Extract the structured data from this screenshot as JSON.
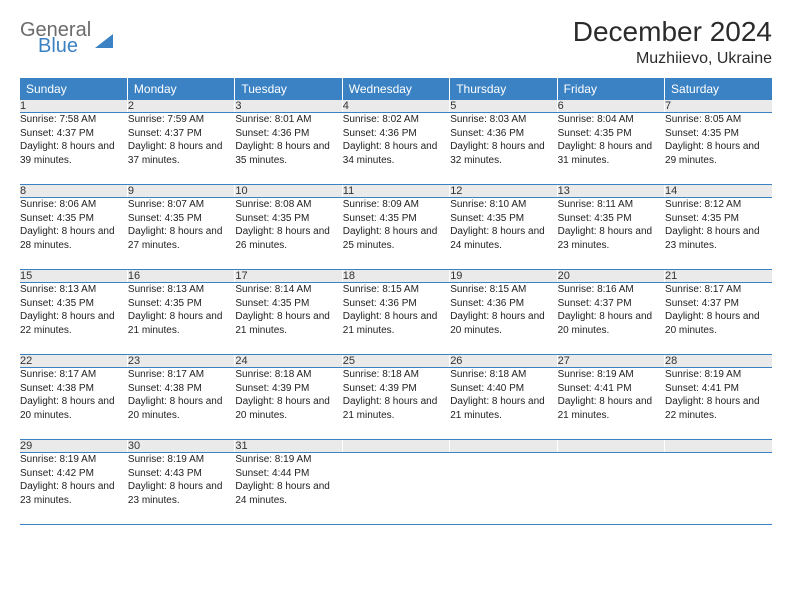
{
  "logo": {
    "top": "General",
    "bottom": "Blue"
  },
  "title": "December 2024",
  "location": "Muzhiievo, Ukraine",
  "header_bg": "#3b82c4",
  "header_fg": "#ffffff",
  "daynum_bg": "#eaeaea",
  "rule_color": "#3b82c4",
  "columns": [
    "Sunday",
    "Monday",
    "Tuesday",
    "Wednesday",
    "Thursday",
    "Friday",
    "Saturday"
  ],
  "weeks": [
    {
      "nums": [
        "1",
        "2",
        "3",
        "4",
        "5",
        "6",
        "7"
      ],
      "cells": [
        {
          "sunrise": "7:58 AM",
          "sunset": "4:37 PM",
          "daylight": "8 hours and 39 minutes."
        },
        {
          "sunrise": "7:59 AM",
          "sunset": "4:37 PM",
          "daylight": "8 hours and 37 minutes."
        },
        {
          "sunrise": "8:01 AM",
          "sunset": "4:36 PM",
          "daylight": "8 hours and 35 minutes."
        },
        {
          "sunrise": "8:02 AM",
          "sunset": "4:36 PM",
          "daylight": "8 hours and 34 minutes."
        },
        {
          "sunrise": "8:03 AM",
          "sunset": "4:36 PM",
          "daylight": "8 hours and 32 minutes."
        },
        {
          "sunrise": "8:04 AM",
          "sunset": "4:35 PM",
          "daylight": "8 hours and 31 minutes."
        },
        {
          "sunrise": "8:05 AM",
          "sunset": "4:35 PM",
          "daylight": "8 hours and 29 minutes."
        }
      ]
    },
    {
      "nums": [
        "8",
        "9",
        "10",
        "11",
        "12",
        "13",
        "14"
      ],
      "cells": [
        {
          "sunrise": "8:06 AM",
          "sunset": "4:35 PM",
          "daylight": "8 hours and 28 minutes."
        },
        {
          "sunrise": "8:07 AM",
          "sunset": "4:35 PM",
          "daylight": "8 hours and 27 minutes."
        },
        {
          "sunrise": "8:08 AM",
          "sunset": "4:35 PM",
          "daylight": "8 hours and 26 minutes."
        },
        {
          "sunrise": "8:09 AM",
          "sunset": "4:35 PM",
          "daylight": "8 hours and 25 minutes."
        },
        {
          "sunrise": "8:10 AM",
          "sunset": "4:35 PM",
          "daylight": "8 hours and 24 minutes."
        },
        {
          "sunrise": "8:11 AM",
          "sunset": "4:35 PM",
          "daylight": "8 hours and 23 minutes."
        },
        {
          "sunrise": "8:12 AM",
          "sunset": "4:35 PM",
          "daylight": "8 hours and 23 minutes."
        }
      ]
    },
    {
      "nums": [
        "15",
        "16",
        "17",
        "18",
        "19",
        "20",
        "21"
      ],
      "cells": [
        {
          "sunrise": "8:13 AM",
          "sunset": "4:35 PM",
          "daylight": "8 hours and 22 minutes."
        },
        {
          "sunrise": "8:13 AM",
          "sunset": "4:35 PM",
          "daylight": "8 hours and 21 minutes."
        },
        {
          "sunrise": "8:14 AM",
          "sunset": "4:35 PM",
          "daylight": "8 hours and 21 minutes."
        },
        {
          "sunrise": "8:15 AM",
          "sunset": "4:36 PM",
          "daylight": "8 hours and 21 minutes."
        },
        {
          "sunrise": "8:15 AM",
          "sunset": "4:36 PM",
          "daylight": "8 hours and 20 minutes."
        },
        {
          "sunrise": "8:16 AM",
          "sunset": "4:37 PM",
          "daylight": "8 hours and 20 minutes."
        },
        {
          "sunrise": "8:17 AM",
          "sunset": "4:37 PM",
          "daylight": "8 hours and 20 minutes."
        }
      ]
    },
    {
      "nums": [
        "22",
        "23",
        "24",
        "25",
        "26",
        "27",
        "28"
      ],
      "cells": [
        {
          "sunrise": "8:17 AM",
          "sunset": "4:38 PM",
          "daylight": "8 hours and 20 minutes."
        },
        {
          "sunrise": "8:17 AM",
          "sunset": "4:38 PM",
          "daylight": "8 hours and 20 minutes."
        },
        {
          "sunrise": "8:18 AM",
          "sunset": "4:39 PM",
          "daylight": "8 hours and 20 minutes."
        },
        {
          "sunrise": "8:18 AM",
          "sunset": "4:39 PM",
          "daylight": "8 hours and 21 minutes."
        },
        {
          "sunrise": "8:18 AM",
          "sunset": "4:40 PM",
          "daylight": "8 hours and 21 minutes."
        },
        {
          "sunrise": "8:19 AM",
          "sunset": "4:41 PM",
          "daylight": "8 hours and 21 minutes."
        },
        {
          "sunrise": "8:19 AM",
          "sunset": "4:41 PM",
          "daylight": "8 hours and 22 minutes."
        }
      ]
    },
    {
      "nums": [
        "29",
        "30",
        "31",
        "",
        "",
        "",
        ""
      ],
      "cells": [
        {
          "sunrise": "8:19 AM",
          "sunset": "4:42 PM",
          "daylight": "8 hours and 23 minutes."
        },
        {
          "sunrise": "8:19 AM",
          "sunset": "4:43 PM",
          "daylight": "8 hours and 23 minutes."
        },
        {
          "sunrise": "8:19 AM",
          "sunset": "4:44 PM",
          "daylight": "8 hours and 24 minutes."
        },
        null,
        null,
        null,
        null
      ]
    }
  ],
  "labels": {
    "sunrise": "Sunrise: ",
    "sunset": "Sunset: ",
    "daylight": "Daylight: "
  }
}
